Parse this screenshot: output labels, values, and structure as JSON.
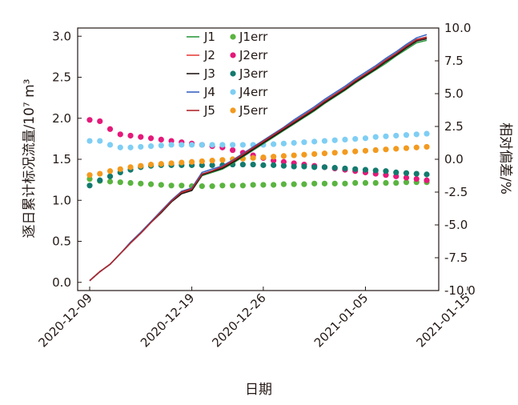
{
  "chart_data": {
    "type": "line",
    "xlabel": "日期",
    "ylabel_left": "逐日累计标况流量/10⁷ m³",
    "ylabel_right": "相对偏差/%",
    "ylim_left": [
      -0.1,
      3.1
    ],
    "ylim_right": [
      -10,
      10
    ],
    "yticks_left": [
      "0.0",
      "0.5",
      "1.0",
      "1.5",
      "2.0",
      "2.5",
      "3.0"
    ],
    "yticks_right": [
      "-10.0",
      "-7.5",
      "-5.0",
      "-2.5",
      "0.0",
      "2.5",
      "5.0",
      "7.5",
      "10.0"
    ],
    "xticks": [
      "2020-12-09",
      "2020-12-19",
      "2020-12-26",
      "2021-01-05",
      "2021-01-15"
    ],
    "x_start": "2020-12-09",
    "legend_position": "top-center",
    "series": [
      {
        "name": "J1",
        "axis": "left",
        "style": "line",
        "color": "#2e9a41",
        "values": [
          0.02,
          0.13,
          0.22,
          0.35,
          0.48,
          0.6,
          0.73,
          0.85,
          0.98,
          1.08,
          1.12,
          1.3,
          1.34,
          1.38,
          1.45,
          1.53,
          1.61,
          1.69,
          1.77,
          1.85,
          1.93,
          2.01,
          2.09,
          2.18,
          2.26,
          2.34,
          2.43,
          2.51,
          2.59,
          2.67,
          2.76,
          2.84,
          2.92,
          2.95
        ]
      },
      {
        "name": "J2",
        "axis": "left",
        "style": "line",
        "color": "#e8423f",
        "values": [
          0.02,
          0.13,
          0.22,
          0.35,
          0.48,
          0.6,
          0.73,
          0.85,
          0.99,
          1.09,
          1.13,
          1.31,
          1.35,
          1.4,
          1.47,
          1.55,
          1.63,
          1.71,
          1.79,
          1.87,
          1.95,
          2.03,
          2.11,
          2.2,
          2.28,
          2.36,
          2.45,
          2.53,
          2.61,
          2.7,
          2.78,
          2.87,
          2.95,
          2.98
        ]
      },
      {
        "name": "J3",
        "axis": "left",
        "style": "line",
        "color": "#231815",
        "values": [
          0.02,
          0.13,
          0.22,
          0.35,
          0.48,
          0.6,
          0.73,
          0.85,
          0.98,
          1.08,
          1.12,
          1.31,
          1.35,
          1.39,
          1.46,
          1.54,
          1.62,
          1.7,
          1.78,
          1.86,
          1.94,
          2.02,
          2.1,
          2.19,
          2.27,
          2.35,
          2.44,
          2.52,
          2.6,
          2.69,
          2.77,
          2.86,
          2.94,
          2.97
        ]
      },
      {
        "name": "J4",
        "axis": "left",
        "style": "line",
        "color": "#3b63c4",
        "values": [
          0.02,
          0.13,
          0.22,
          0.35,
          0.49,
          0.61,
          0.74,
          0.87,
          1.0,
          1.11,
          1.15,
          1.34,
          1.38,
          1.42,
          1.49,
          1.57,
          1.65,
          1.73,
          1.81,
          1.89,
          1.98,
          2.06,
          2.14,
          2.23,
          2.31,
          2.39,
          2.48,
          2.56,
          2.64,
          2.73,
          2.81,
          2.9,
          2.98,
          3.02
        ]
      },
      {
        "name": "J5",
        "axis": "left",
        "style": "line",
        "color": "#b2282e",
        "values": [
          0.02,
          0.13,
          0.22,
          0.35,
          0.48,
          0.6,
          0.73,
          0.86,
          0.99,
          1.1,
          1.14,
          1.32,
          1.36,
          1.41,
          1.48,
          1.56,
          1.64,
          1.72,
          1.8,
          1.88,
          1.96,
          2.04,
          2.12,
          2.21,
          2.29,
          2.37,
          2.46,
          2.54,
          2.62,
          2.71,
          2.79,
          2.88,
          2.96,
          2.99
        ]
      },
      {
        "name": "J1err",
        "axis": "right",
        "style": "dots",
        "color": "#5ab440",
        "values": [
          -1.5,
          -1.65,
          -1.7,
          -1.75,
          -1.8,
          -1.85,
          -1.9,
          -1.95,
          -2.0,
          -2.0,
          -2.05,
          -2.05,
          -2.05,
          -2.0,
          -2.0,
          -2.0,
          -1.95,
          -1.95,
          -1.95,
          -1.9,
          -1.9,
          -1.9,
          -1.85,
          -1.85,
          -1.85,
          -1.85,
          -1.8,
          -1.8,
          -1.8,
          -1.8,
          -1.8,
          -1.75,
          -1.75,
          -1.75
        ]
      },
      {
        "name": "J2err",
        "axis": "right",
        "style": "dots",
        "color": "#e5197a",
        "values": [
          3.0,
          2.9,
          2.3,
          1.9,
          1.8,
          1.7,
          1.6,
          1.5,
          1.4,
          1.3,
          1.2,
          1.1,
          1.0,
          0.9,
          0.7,
          0.5,
          0.3,
          0.1,
          -0.1,
          -0.2,
          -0.3,
          -0.4,
          -0.5,
          -0.6,
          -0.7,
          -0.8,
          -0.9,
          -1.0,
          -1.1,
          -1.2,
          -1.3,
          -1.4,
          -1.5,
          -1.6
        ]
      },
      {
        "name": "J3err",
        "axis": "right",
        "style": "dots",
        "color": "#127a6e",
        "values": [
          -2.0,
          -1.6,
          -1.3,
          -1.0,
          -0.8,
          -0.6,
          -0.5,
          -0.45,
          -0.45,
          -0.45,
          -0.45,
          -0.45,
          -0.45,
          -0.45,
          -0.4,
          -0.4,
          -0.4,
          -0.45,
          -0.45,
          -0.5,
          -0.55,
          -0.55,
          -0.6,
          -0.6,
          -0.65,
          -0.7,
          -0.75,
          -0.8,
          -0.85,
          -0.9,
          -1.0,
          -1.05,
          -1.1,
          -1.15
        ]
      },
      {
        "name": "J4err",
        "axis": "right",
        "style": "dots",
        "color": "#7ecef4",
        "values": [
          1.4,
          1.4,
          1.1,
          0.9,
          0.9,
          0.95,
          1.0,
          1.05,
          1.1,
          1.1,
          1.1,
          1.1,
          1.1,
          1.1,
          1.1,
          1.1,
          1.1,
          1.1,
          1.15,
          1.2,
          1.25,
          1.3,
          1.35,
          1.4,
          1.45,
          1.5,
          1.55,
          1.6,
          1.7,
          1.75,
          1.8,
          1.85,
          1.9,
          1.95
        ]
      },
      {
        "name": "J5err",
        "axis": "right",
        "style": "dots",
        "color": "#f39a1e",
        "values": [
          -1.2,
          -1.1,
          -0.9,
          -0.75,
          -0.6,
          -0.5,
          -0.4,
          -0.35,
          -0.3,
          -0.25,
          -0.2,
          -0.15,
          -0.1,
          -0.05,
          0.0,
          0.05,
          0.1,
          0.15,
          0.2,
          0.25,
          0.3,
          0.35,
          0.4,
          0.45,
          0.5,
          0.55,
          0.6,
          0.65,
          0.7,
          0.75,
          0.8,
          0.85,
          0.9,
          0.95
        ]
      }
    ]
  }
}
